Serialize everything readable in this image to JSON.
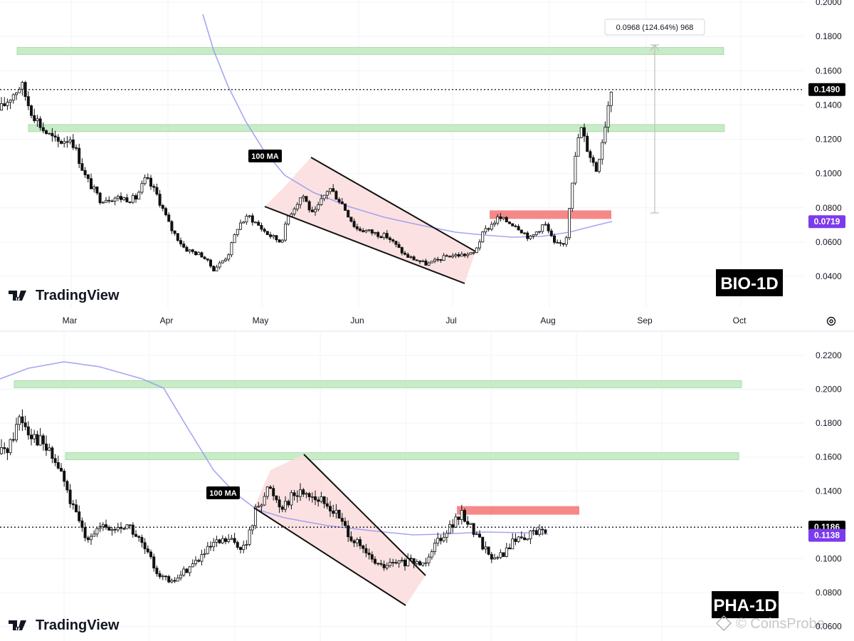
{
  "charts": [
    {
      "symbol_label": "BIO-1D",
      "brand": "TradingView",
      "ma_tag": "100 MA",
      "price_badges": [
        {
          "text": "0.1490",
          "value": 0.149,
          "bg": "#000000",
          "fg": "#ffffff"
        },
        {
          "text": "0.0719",
          "value": 0.0719,
          "bg": "#7c3aed",
          "fg": "#ffffff"
        }
      ],
      "measure_label": "0.0968 (124.64%) 968",
      "x_labels": [
        "Mar",
        "Apr",
        "May",
        "Jun",
        "Jul",
        "Aug",
        "Sep",
        "Oct"
      ],
      "settings_icon": "gear-icon"
    },
    {
      "symbol_label": "PHA-1D",
      "brand": "TradingView",
      "ma_tag": "100 MA",
      "price_badges": [
        {
          "text": "0.1186",
          "value": 0.1186,
          "bg": "#000000",
          "fg": "#ffffff"
        },
        {
          "text": "0.1138",
          "value": 0.1138,
          "bg": "#7c3aed",
          "fg": "#ffffff"
        }
      ],
      "watermark": "© CoinsProbe",
      "x_labels": []
    }
  ],
  "chart_data": [
    {
      "type": "candlestick",
      "title": "BIO-1D",
      "ylim": [
        0.03,
        0.2
      ],
      "y_ticks": [
        "0.2000",
        "0.1800",
        "0.1600",
        "0.1400",
        "0.1200",
        "0.1000",
        "0.0800",
        "0.0600",
        "0.0400"
      ],
      "x_ticks": [
        "Mar",
        "Apr",
        "May",
        "Jun",
        "Jul",
        "Aug",
        "Sep",
        "Oct"
      ],
      "last_price": 0.149,
      "ma_100_last": 0.0719,
      "resistance_zones": [
        0.1715,
        0.1265
      ],
      "supply_zone": 0.076,
      "series": [
        {
          "name": "100 MA",
          "color": "#9b9bf2",
          "trend": "falling from ~0.17 in early April to ~0.063 in mid July, rising to 0.0719 late August"
        }
      ],
      "patterns": [
        "falling wedge (May–Jul)"
      ],
      "measurement": {
        "from": 0.077,
        "to": 0.175,
        "change": 0.0968,
        "change_pct": 124.64,
        "label": "0.0968 (124.64%) 968"
      },
      "colors": {
        "up": "#089981",
        "down": "#f23645",
        "support": "#c8ebc8",
        "resistance": "#f47c7c",
        "wedge": "#fadcdc"
      }
    },
    {
      "type": "candlestick",
      "title": "PHA-1D",
      "ylim": [
        0.065,
        0.225
      ],
      "y_ticks": [
        "0.2200",
        "0.2000",
        "0.1800",
        "0.1600",
        "0.1400",
        "0.1200",
        "0.1000",
        "0.0800",
        "0.0600"
      ],
      "last_price": 0.1186,
      "ma_100_last": 0.1138,
      "resistance_zones": [
        0.203,
        0.1605
      ],
      "supply_zone": 0.1285,
      "series": [
        {
          "name": "100 MA",
          "color": "#9b9bf2",
          "trend": "peaking ~0.217 in February, falling to ~0.12 in late May, flattening near 0.114"
        }
      ],
      "patterns": [
        "falling wedge (May–Jul)"
      ],
      "colors": {
        "up": "#089981",
        "down": "#f23645",
        "support": "#c8ebc8",
        "resistance": "#f47c7c",
        "wedge": "#fadcdc"
      }
    }
  ]
}
